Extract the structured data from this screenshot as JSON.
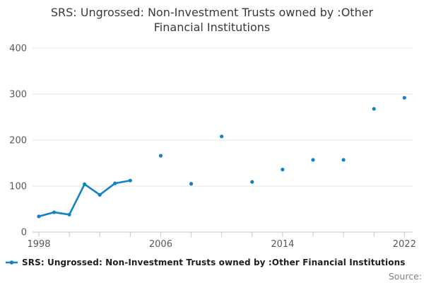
{
  "title": {
    "full": "SRS: Ungrossed: Non-Investment Trusts owned by :Other Financial Institutions",
    "line1": "SRS: Ungrossed: Non-Investment Trusts owned by :Other",
    "line2": "Financial Institutions"
  },
  "legend": {
    "label": "SRS: Ungrossed: Non-Investment Trusts owned by :Other Financial Institutions",
    "marker": "line-with-dot"
  },
  "source_label": "Source:",
  "colors": {
    "series": "#1382c4",
    "gridline": "#e6e6e6",
    "axis": "#b7c9d8",
    "tick_label": "#595959",
    "title_text": "#3a3a3a",
    "legend_text": "#1f1f1f",
    "source_text": "#808080"
  },
  "chart_data": {
    "type": "line",
    "title": "SRS: Ungrossed: Non-Investment Trusts owned by :Other Financial Institutions",
    "xlabel": "",
    "ylabel": "",
    "x_range": [
      1998,
      2022
    ],
    "ylim": [
      0,
      415
    ],
    "y_ticks": [
      0,
      100,
      200,
      300,
      400
    ],
    "x_tick_step": 2,
    "x_tick_labels": [
      1998,
      2006,
      2014,
      2022
    ],
    "grid": "horizontal",
    "legend_position": "bottom",
    "connect_rule": "adjacent-years-only",
    "series": [
      {
        "name": "SRS: Ungrossed: Non-Investment Trusts owned by :Other Financial Institutions",
        "points": [
          [
            1998,
            34
          ],
          [
            1999,
            43
          ],
          [
            2000,
            38
          ],
          [
            2001,
            104
          ],
          [
            2002,
            81
          ],
          [
            2003,
            106
          ],
          [
            2004,
            112
          ],
          [
            2006,
            166
          ],
          [
            2008,
            105
          ],
          [
            2010,
            208
          ],
          [
            2012,
            109
          ],
          [
            2014,
            136
          ],
          [
            2016,
            157
          ],
          [
            2018,
            157
          ],
          [
            2020,
            268
          ],
          [
            2022,
            292
          ]
        ]
      }
    ]
  }
}
